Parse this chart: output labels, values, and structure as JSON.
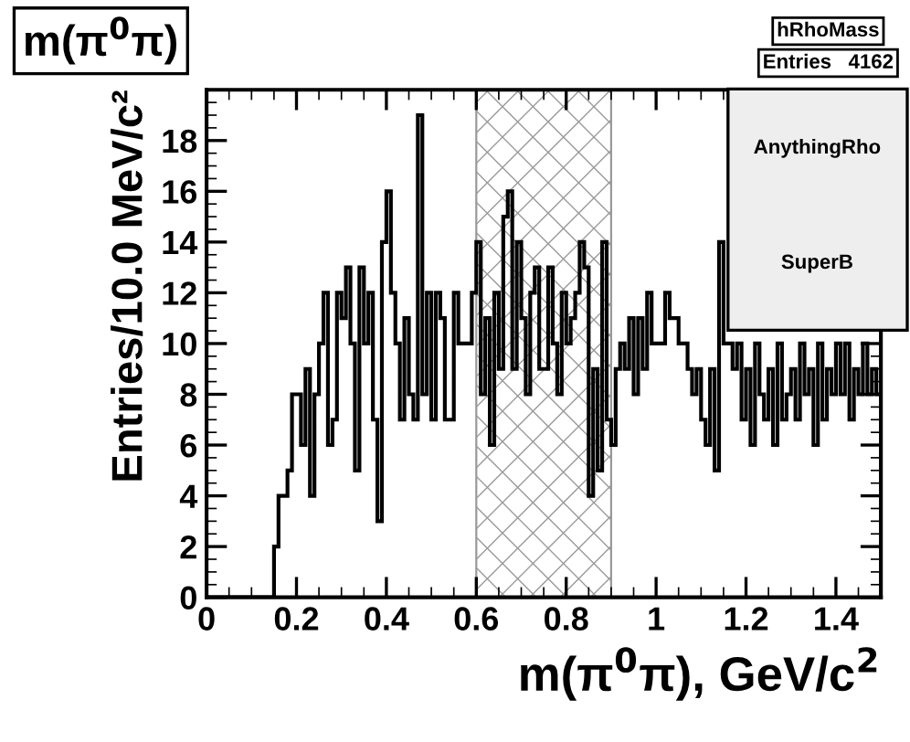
{
  "chart_data": {
    "type": "histogram",
    "title": "m(π$^{0}$π)",
    "xlabel": "m(π$^{0}$π), GeV/c$^{2}$",
    "ylabel": "Entries/10.0 MeV/c²",
    "bins": [
      0,
      0.01,
      0.02,
      0.03,
      0.04,
      0.05,
      0.06,
      0.07,
      0.08,
      0.09,
      0.1,
      0.11,
      0.12,
      0.13,
      0.14,
      0.15,
      0.16,
      0.17,
      0.18,
      0.19,
      0.2,
      0.21,
      0.22,
      0.23,
      0.24,
      0.25,
      0.26,
      0.27,
      0.28,
      0.29,
      0.3,
      0.31,
      0.32,
      0.33,
      0.34,
      0.35,
      0.36,
      0.37,
      0.38,
      0.39,
      0.4,
      0.41,
      0.42,
      0.43,
      0.44,
      0.45,
      0.46,
      0.47,
      0.48,
      0.49,
      0.5,
      0.51,
      0.52,
      0.53,
      0.54,
      0.55,
      0.56,
      0.57,
      0.58,
      0.59,
      0.6,
      0.61,
      0.62,
      0.63,
      0.64,
      0.65,
      0.66,
      0.67,
      0.68,
      0.69,
      0.7,
      0.71,
      0.72,
      0.73,
      0.74,
      0.75,
      0.76,
      0.77,
      0.78,
      0.79,
      0.8,
      0.81,
      0.82,
      0.83,
      0.84,
      0.85,
      0.86,
      0.87,
      0.88,
      0.89,
      0.9,
      0.91,
      0.92,
      0.93,
      0.94,
      0.95,
      0.96,
      0.97,
      0.98,
      0.99,
      1.0,
      1.01,
      1.02,
      1.03,
      1.04,
      1.05,
      1.06,
      1.07,
      1.08,
      1.09,
      1.1,
      1.11,
      1.12,
      1.13,
      1.14,
      1.15,
      1.16,
      1.17,
      1.18,
      1.19,
      1.2,
      1.21,
      1.22,
      1.23,
      1.24,
      1.25,
      1.26,
      1.27,
      1.28,
      1.29,
      1.3,
      1.31,
      1.32,
      1.33,
      1.34,
      1.35,
      1.36,
      1.37,
      1.38,
      1.39,
      1.4,
      1.41,
      1.42,
      1.43,
      1.44,
      1.45,
      1.46,
      1.47,
      1.48,
      1.49,
      1.5
    ],
    "values": [
      0,
      0,
      0,
      0,
      0,
      0,
      0,
      0,
      0,
      0,
      0,
      0,
      0,
      0,
      0,
      2,
      4,
      4,
      5,
      8,
      8,
      6,
      9,
      4,
      8,
      10,
      12,
      6,
      7,
      12,
      11,
      13,
      10,
      5,
      13,
      10,
      12,
      7,
      3,
      14,
      16,
      12,
      10,
      7,
      11,
      8,
      7,
      19,
      8,
      12,
      7,
      12,
      11,
      7,
      7,
      12,
      10,
      10,
      10,
      12,
      14,
      8,
      11,
      6,
      12,
      9,
      15,
      16,
      9,
      14,
      11,
      8,
      12,
      13,
      9,
      9,
      13,
      10,
      8,
      12,
      10,
      11,
      12,
      14,
      13,
      4,
      9,
      5,
      14,
      7,
      6,
      9,
      10,
      9,
      11,
      8,
      11,
      9,
      12,
      10,
      10,
      10,
      12,
      11,
      11,
      10,
      10,
      9,
      8,
      9,
      7,
      6,
      9,
      5,
      14,
      10,
      10,
      9,
      10,
      7,
      9,
      6,
      10,
      8,
      7,
      9,
      6,
      10,
      7,
      8,
      9,
      7,
      10,
      8,
      9,
      6,
      10,
      7,
      9,
      8,
      10,
      8,
      10,
      7,
      9,
      8,
      10,
      8,
      9,
      8
    ],
    "color": "#000000",
    "bands": [
      {
        "axis": "x",
        "from": 0.6,
        "to": 0.9
      }
    ],
    "xlim": [
      0,
      1.5
    ],
    "xticks": [
      0,
      0.2,
      0.4,
      0.6,
      0.8,
      {
        "value": 1.0,
        "label": "1"
      },
      1.2,
      1.4
    ],
    "ylim": [
      0,
      20
    ],
    "yticks": [
      0,
      2,
      4,
      6,
      8,
      10,
      12,
      14,
      16,
      18
    ],
    "grid": false,
    "annotations": [
      "hRhoMass",
      "Entries   4162",
      "AnythingRho",
      "SuperB"
    ]
  }
}
